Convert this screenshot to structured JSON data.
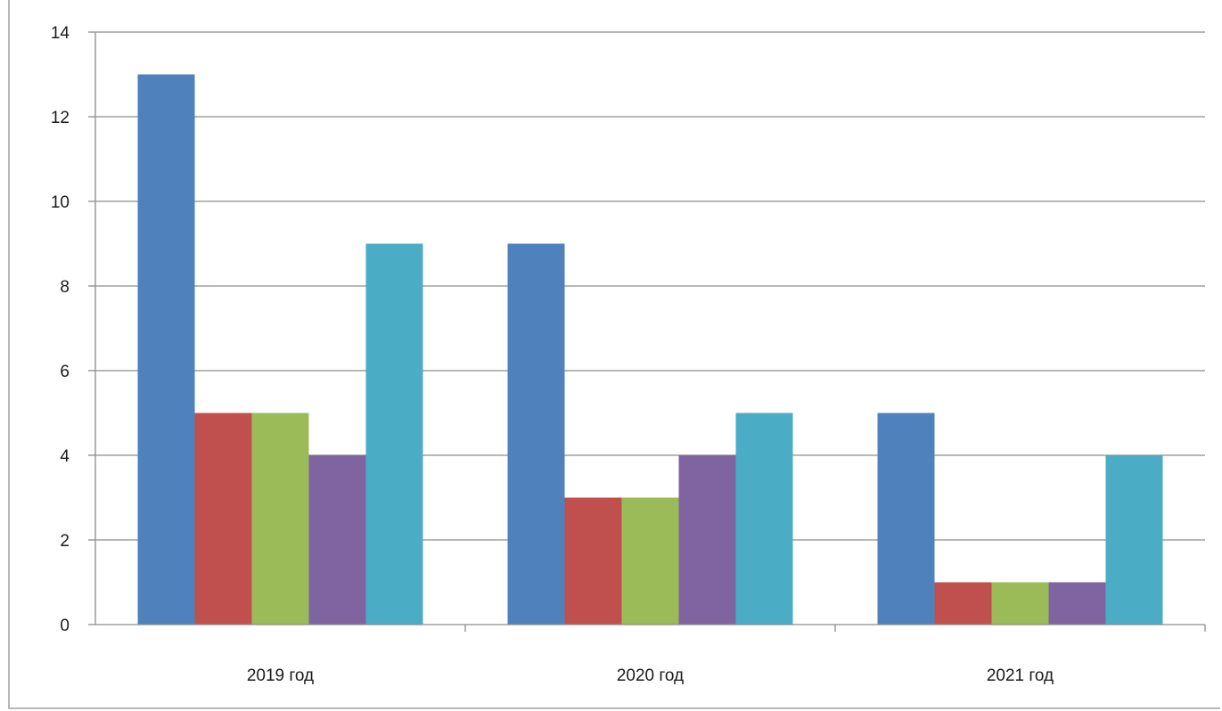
{
  "chart_data": {
    "type": "bar",
    "categories": [
      "2019 год",
      "2020 год",
      "2021 год"
    ],
    "series": [
      {
        "color": "#4f81bd",
        "values": [
          13,
          9,
          5
        ]
      },
      {
        "color": "#c0504d",
        "values": [
          5,
          3,
          1
        ]
      },
      {
        "color": "#9bbb59",
        "values": [
          5,
          3,
          1
        ]
      },
      {
        "color": "#8064a2",
        "values": [
          4,
          4,
          1
        ]
      },
      {
        "color": "#4bacc6",
        "values": [
          9,
          5,
          4
        ]
      }
    ],
    "ylim": [
      0,
      14
    ],
    "yticks": [
      0,
      2,
      4,
      6,
      8,
      10,
      12,
      14
    ],
    "grid": true,
    "legend": "none"
  }
}
